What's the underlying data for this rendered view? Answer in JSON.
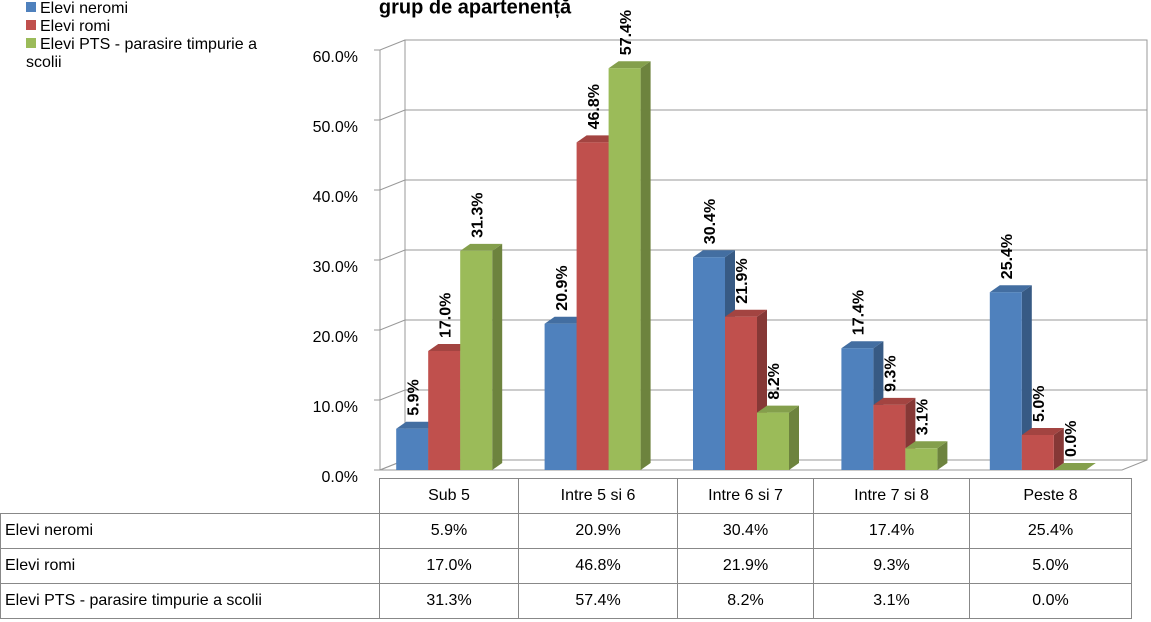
{
  "chart_data": {
    "type": "bar",
    "title": "grup de apartenență",
    "categories": [
      "Sub 5",
      "Intre 5 si 6",
      "Intre 6 si 7",
      "Intre 7 si 8",
      "Peste 8"
    ],
    "series": [
      {
        "name": "Elevi neromi",
        "color": "#4f81bd",
        "values": [
          5.9,
          20.9,
          30.4,
          17.4,
          25.4
        ],
        "value_labels": [
          "5.9%",
          "20.9%",
          "30.4%",
          "17.4%",
          "25.4%"
        ]
      },
      {
        "name": "Elevi romi",
        "color": "#c0504d",
        "values": [
          17.0,
          46.8,
          21.9,
          9.3,
          5.0
        ],
        "value_labels": [
          "17.0%",
          "46.8%",
          "21.9%",
          "9.3%",
          "5.0%"
        ]
      },
      {
        "name": "Elevi PTS - parasire timpurie a scolii",
        "color": "#9bbb59",
        "values": [
          31.3,
          57.4,
          8.2,
          3.1,
          0.0
        ],
        "value_labels": [
          "31.3%",
          "57.4%",
          "8.2%",
          "3.1%",
          "0.0%"
        ]
      }
    ],
    "ylim": [
      0,
      60
    ],
    "yticks": [
      {
        "value": 0,
        "label": "0.0%"
      },
      {
        "value": 10,
        "label": "10.0%"
      },
      {
        "value": 20,
        "label": "20.0%"
      },
      {
        "value": 30,
        "label": "30.0%"
      },
      {
        "value": 40,
        "label": "40.0%"
      },
      {
        "value": 50,
        "label": "50.0%"
      },
      {
        "value": 60,
        "label": "60.0%"
      }
    ],
    "grid": true,
    "legend": "left"
  }
}
